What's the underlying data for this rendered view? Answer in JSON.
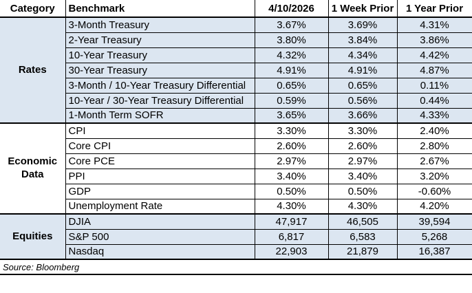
{
  "colors": {
    "shaded_row": "#dce6f1",
    "border": "#000000",
    "background": "#ffffff",
    "text": "#000000"
  },
  "chart_data": {
    "type": "table",
    "title": "",
    "columns": [
      "Category",
      "Benchmark",
      "4/10/2026",
      "1 Week Prior",
      "1 Year Prior"
    ],
    "sections": [
      {
        "category": "Rates",
        "shaded": true,
        "rows": [
          {
            "benchmark": "3-Month Treasury",
            "values": [
              "3.67%",
              "3.69%",
              "4.31%"
            ]
          },
          {
            "benchmark": "2-Year Treasury",
            "values": [
              "3.80%",
              "3.84%",
              "3.86%"
            ]
          },
          {
            "benchmark": "10-Year Treasury",
            "values": [
              "4.32%",
              "4.34%",
              "4.42%"
            ]
          },
          {
            "benchmark": "30-Year Treasury",
            "values": [
              "4.91%",
              "4.91%",
              "4.87%"
            ]
          },
          {
            "benchmark": "3-Month / 10-Year Treasury Differential",
            "values": [
              "0.65%",
              "0.65%",
              "0.11%"
            ]
          },
          {
            "benchmark": "10-Year / 30-Year Treasury Differential",
            "values": [
              "0.59%",
              "0.56%",
              "0.44%"
            ]
          },
          {
            "benchmark": "1-Month Term SOFR",
            "values": [
              "3.65%",
              "3.66%",
              "4.33%"
            ]
          }
        ]
      },
      {
        "category": "Economic Data",
        "shaded": false,
        "rows": [
          {
            "benchmark": "CPI",
            "values": [
              "3.30%",
              "3.30%",
              "2.40%"
            ]
          },
          {
            "benchmark": "Core CPI",
            "values": [
              "2.60%",
              "2.60%",
              "2.80%"
            ]
          },
          {
            "benchmark": "Core PCE",
            "values": [
              "2.97%",
              "2.97%",
              "2.67%"
            ]
          },
          {
            "benchmark": "PPI",
            "values": [
              "3.40%",
              "3.40%",
              "3.20%"
            ]
          },
          {
            "benchmark": "GDP",
            "values": [
              "0.50%",
              "0.50%",
              "-0.60%"
            ]
          },
          {
            "benchmark": "Unemployment Rate",
            "values": [
              "4.30%",
              "4.30%",
              "4.20%"
            ]
          }
        ]
      },
      {
        "category": "Equities",
        "shaded": true,
        "rows": [
          {
            "benchmark": "DJIA",
            "values": [
              "47,917",
              "46,505",
              "39,594"
            ]
          },
          {
            "benchmark": "S&P 500",
            "values": [
              "6,817",
              "6,583",
              "5,268"
            ]
          },
          {
            "benchmark": "Nasdaq",
            "values": [
              "22,903",
              "21,879",
              "16,387"
            ]
          }
        ]
      }
    ],
    "source_note": "Source: Bloomberg"
  }
}
